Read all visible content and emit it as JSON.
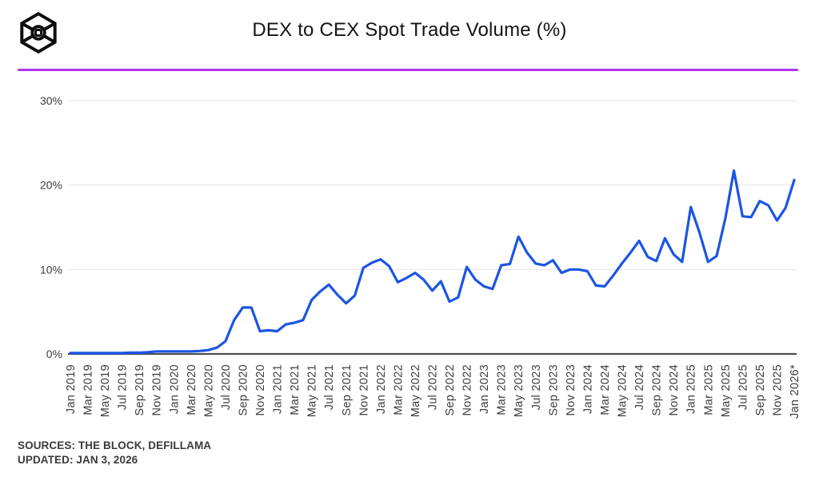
{
  "header": {
    "title": "DEX to CEX Spot Trade Volume (%)",
    "logo": "the-block-cube-logo"
  },
  "divider_color": "#b133f0",
  "chart_data": {
    "type": "line",
    "title": "DEX to CEX Spot Trade Volume (%)",
    "unit": "%",
    "x_frequency": "monthly",
    "x_range": [
      "Jan 2019",
      "Jan 2026"
    ],
    "x_tick_labels": [
      "Jan 2019",
      "Mar 2019",
      "May 2019",
      "Jul 2019",
      "Sep 2019",
      "Nov 2019",
      "Jan 2020",
      "Mar 2020",
      "May 2020",
      "Jul 2020",
      "Sep 2020",
      "Nov 2020",
      "Jan 2021",
      "Mar 2021",
      "May 2021",
      "Jul 2021",
      "Sep 2021",
      "Nov 2021",
      "Jan 2022",
      "Mar 2022",
      "May 2022",
      "Jul 2022",
      "Sep 2022",
      "Nov 2022",
      "Jan 2023",
      "Mar 2023",
      "May 2023",
      "Jul 2023",
      "Sep 2023",
      "Nov 2023",
      "Jan 2024",
      "Mar 2024",
      "May 2024",
      "Jul 2024",
      "Sep 2024",
      "Nov 2024",
      "Jan 2025",
      "Mar 2025",
      "May 2025",
      "Jul 2025",
      "Sep 2025",
      "Nov 2025",
      "Jan 2026*"
    ],
    "y_ticks": [
      0,
      10,
      20,
      30
    ],
    "y_tick_suffix": "%",
    "ylim": [
      0,
      33
    ],
    "grid": true,
    "line_color": "#1b55e3",
    "series": [
      {
        "name": "DEX to CEX spot trade volume share (%)",
        "values": [
          0.1,
          0.1,
          0.1,
          0.1,
          0.1,
          0.1,
          0.1,
          0.15,
          0.15,
          0.2,
          0.3,
          0.3,
          0.3,
          0.3,
          0.3,
          0.35,
          0.45,
          0.75,
          1.5,
          4.0,
          5.5,
          5.5,
          2.7,
          2.8,
          2.7,
          3.5,
          3.7,
          4.0,
          6.4,
          7.4,
          8.2,
          7.0,
          6.0,
          6.9,
          10.2,
          10.8,
          11.2,
          10.4,
          8.5,
          9.0,
          9.6,
          8.8,
          7.5,
          8.6,
          6.2,
          6.7,
          10.3,
          8.8,
          8.0,
          7.7,
          10.5,
          10.65,
          13.9,
          12.0,
          10.7,
          10.5,
          11.1,
          9.6,
          10.0,
          10.0,
          9.8,
          8.1,
          8.0,
          9.3,
          10.7,
          12.0,
          13.4,
          11.5,
          11.0,
          13.7,
          11.8,
          10.9,
          17.4,
          14.4,
          10.9,
          11.6,
          16.0,
          21.7,
          16.3,
          16.2,
          18.1,
          17.6,
          15.8,
          17.3,
          20.6
        ]
      }
    ]
  },
  "footer": {
    "sources": "SOURCES: THE BLOCK, DEFILLAMA",
    "updated": "UPDATED: JAN 3, 2026"
  }
}
